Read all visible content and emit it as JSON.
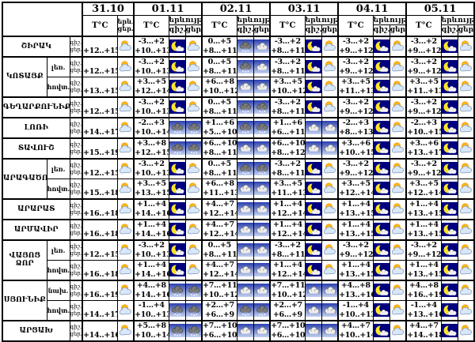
{
  "chart_data": {
    "type": "table",
    "title": "",
    "header": {
      "dates": [
        "31.10",
        "01.11",
        "02.11",
        "03.11",
        "04.11",
        "05.11"
      ],
      "temp_label": "T°C",
      "phenomenon_label": "երևույթ",
      "phen_abbr": "երև.",
      "night_label": "գիշ.",
      "day_label": "ցեր."
    },
    "side_labels": {
      "night": "գիշ.",
      "day": "ցեր."
    },
    "icon_legend": {
      "moon": "moon-cloud-icon",
      "sun": "sun-cloud-icon",
      "cloud": "cloud-icon",
      "rain": "rain-cloud-icon"
    },
    "rows": [
      {
        "region": "ՇԻՐԱԿ",
        "span": 1,
        "sub": null,
        "oct": "+12..+15",
        "days": [
          [
            "-3...+2",
            "+10..+13",
            "moon",
            "sun"
          ],
          [
            "0...+5",
            "+8...+11",
            "rain",
            "cloud"
          ],
          [
            "-3...+2",
            "+8...+11",
            "moon",
            "sun"
          ],
          [
            "-3...+2",
            "+9...+12",
            "moon",
            "sun"
          ],
          [
            "-3...+2",
            "+9...+12",
            "moon",
            "sun"
          ]
        ]
      },
      {
        "region": "ԿՈՏԱՅՔ",
        "span": 2,
        "sub": "լեռ.",
        "oct": "+12..+15",
        "days": [
          [
            "-3...+2",
            "+10..+13",
            "moon",
            "sun"
          ],
          [
            "0...+5",
            "+8...+11",
            "rain",
            "cloud"
          ],
          [
            "-3...+2",
            "+8...+11",
            "moon",
            "sun"
          ],
          [
            "-3...+2",
            "+9...+12",
            "moon",
            "sun"
          ],
          [
            "-3...+2",
            "+9...+12",
            "moon",
            "sun"
          ]
        ]
      },
      {
        "region": null,
        "span": 0,
        "sub": "հովտ.",
        "oct": "+13..+15",
        "days": [
          [
            "+3...+5",
            "+12..+14",
            "moon",
            "sun"
          ],
          [
            "+6...+8",
            "+10..+12",
            "cloud",
            "cloud"
          ],
          [
            "+3...+5",
            "+10..+12",
            "moon",
            "sun"
          ],
          [
            "+3...+5",
            "+11..+13",
            "moon",
            "sun"
          ],
          [
            "+3...+5",
            "+11..+13",
            "moon",
            "sun"
          ]
        ]
      },
      {
        "region": "ԳԵՂԱՐՔՈՒՆԻՔ",
        "span": 1,
        "sub": null,
        "oct": "+12..+15",
        "days": [
          [
            "-3...+2",
            "+10..+13",
            "moon",
            "sun"
          ],
          [
            "0...+5",
            "+8...+11",
            "rain",
            "rain"
          ],
          [
            "-3...+2",
            "+8...+11",
            "moon",
            "sun"
          ],
          [
            "-3...+2",
            "+9...+12",
            "moon",
            "sun"
          ],
          [
            "-3...+2",
            "+9...+12",
            "moon",
            "sun"
          ]
        ]
      },
      {
        "region": "ԼՈՌԻ",
        "span": 1,
        "sub": null,
        "oct": "+14..+17",
        "days": [
          [
            "-2...+3",
            "+10..+14",
            "rain",
            "rain"
          ],
          [
            "+1...+6",
            "+5...+10",
            "rain",
            "rain"
          ],
          [
            "+1...+6",
            "+6...+11",
            "cloud",
            "cloud"
          ],
          [
            "-2...+3",
            "+8...+13",
            "moon",
            "sun"
          ],
          [
            "-2...+3",
            "+10..+15",
            "moon",
            "sun"
          ]
        ]
      },
      {
        "region": "ՏԱՎՈՒՇ",
        "span": 1,
        "sub": null,
        "oct": "+15..+19",
        "days": [
          [
            "+3...+8",
            "+12..+15",
            "rain",
            "rain"
          ],
          [
            "+6...+10",
            "+8...+11",
            "cloud",
            "cloud"
          ],
          [
            "+6...+10",
            "+8...+12",
            "cloud",
            "cloud"
          ],
          [
            "+3...+6",
            "+10..+15",
            "moon",
            "sun"
          ],
          [
            "+3...+6",
            "+13..+17",
            "moon",
            "sun"
          ]
        ]
      },
      {
        "region": "ԱՐԱԳԱԾՈՏՆ",
        "span": 2,
        "sub": "լեռ.",
        "oct": "+12..+15",
        "days": [
          [
            "-3...+2",
            "+10..+13",
            "moon",
            "sun"
          ],
          [
            "0...+5",
            "+8...+11",
            "rain",
            "rain"
          ],
          [
            "-3...+2",
            "+8...+11",
            "moon",
            "sun"
          ],
          [
            "-3...+2",
            "+9...+12",
            "moon",
            "sun"
          ],
          [
            "-3...+2",
            "+9...+12",
            "moon",
            "sun"
          ]
        ]
      },
      {
        "region": null,
        "span": 0,
        "sub": "հովտ.",
        "oct": "+15..+18",
        "days": [
          [
            "+3...+5",
            "+13..+15",
            "moon",
            "sun"
          ],
          [
            "+6...+8",
            "+11..+13",
            "cloud",
            "cloud"
          ],
          [
            "+3...+5",
            "+11..+13",
            "moon",
            "sun"
          ],
          [
            "+3...+5",
            "+12..+14",
            "moon",
            "sun"
          ],
          [
            "+3...+5",
            "+12..+14",
            "moon",
            "sun"
          ]
        ]
      },
      {
        "region": "ԱՐԱՐԱՏ",
        "span": 1,
        "sub": null,
        "oct": "+16..+18",
        "days": [
          [
            "+1...+4",
            "+14..+16",
            "moon",
            "sun"
          ],
          [
            "+4...+7",
            "+12..+14",
            "cloud",
            "cloud"
          ],
          [
            "+1...+4",
            "+12..+14",
            "moon",
            "sun"
          ],
          [
            "+1...+4",
            "+13..+15",
            "moon",
            "sun"
          ],
          [
            "+1...+4",
            "+13..+15",
            "moon",
            "sun"
          ]
        ]
      },
      {
        "region": "ԱՐՄԱՎԻՐ",
        "span": 1,
        "sub": null,
        "oct": "+16..+18",
        "days": [
          [
            "+1...+4",
            "+14..+16",
            "moon",
            "sun"
          ],
          [
            "+4...+7",
            "+12..+14",
            "cloud",
            "cloud"
          ],
          [
            "+1...+4",
            "+12..+14",
            "moon",
            "sun"
          ],
          [
            "+1...+4",
            "+13..+15",
            "moon",
            "sun"
          ],
          [
            "+1...+4",
            "+13..+15",
            "moon",
            "sun"
          ]
        ]
      },
      {
        "region": "ՎԱՅՈՑ ՁՈՐ",
        "span": 2,
        "sub": "լեռ.",
        "oct": "+12..+15",
        "days": [
          [
            "-3...+2",
            "+10..+13",
            "moon",
            "sun"
          ],
          [
            "0...+5",
            "+8...+11",
            "cloud",
            "cloud"
          ],
          [
            "-3...+2",
            "+8...+11",
            "moon",
            "sun"
          ],
          [
            "-3...+2",
            "+9...+12",
            "moon",
            "sun"
          ],
          [
            "-3...+2",
            "+9...+12",
            "moon",
            "sun"
          ]
        ]
      },
      {
        "region": null,
        "span": 0,
        "sub": "հովտ.",
        "oct": "+16..+18",
        "days": [
          [
            "+1...+4",
            "+14..+16",
            "moon",
            "sun"
          ],
          [
            "+4...+7",
            "+12..+14",
            "cloud",
            "cloud"
          ],
          [
            "+1...+4",
            "+12..+14",
            "moon",
            "sun"
          ],
          [
            "+1...+4",
            "+13..+15",
            "moon",
            "sun"
          ],
          [
            "+1...+4",
            "+13..+15",
            "moon",
            "sun"
          ]
        ]
      },
      {
        "region": "ՍՅՈՒՆԻՔ",
        "span": 2,
        "sub": "նախ.",
        "oct": "+16..+19",
        "days": [
          [
            "+4...+8",
            "+14..+16",
            "rain",
            "rain"
          ],
          [
            "+7...+11",
            "+10..+12",
            "cloud",
            "cloud"
          ],
          [
            "+7...+11",
            "+10..+12",
            "cloud",
            "cloud"
          ],
          [
            "+4...+8",
            "+13..+16",
            "moon",
            "sun"
          ],
          [
            "+4...+8",
            "+16..+19",
            "moon",
            "sun"
          ]
        ]
      },
      {
        "region": null,
        "span": 0,
        "sub": "հովտ.",
        "oct": "+14..+17",
        "days": [
          [
            "-1...+4",
            "+10..+13",
            "rain",
            "rain"
          ],
          [
            "+2...+7",
            "+6...+9",
            "rain",
            "rain"
          ],
          [
            "+2...+7",
            "+6...+9",
            "cloud",
            "cloud"
          ],
          [
            "-1...+4",
            "+10..+13",
            "moon",
            "sun"
          ],
          [
            "-1...+4",
            "+13..+16",
            "moon",
            "sun"
          ]
        ]
      },
      {
        "region": "ԱՐՑԱԽ",
        "span": 1,
        "sub": null,
        "oct": "+14..+16",
        "days": [
          [
            "+5...+8",
            "+10..+14",
            "rain",
            "rain"
          ],
          [
            "+7...+10",
            "+6...+10",
            "cloud",
            "cloud"
          ],
          [
            "+7...+10",
            "+6...+10",
            "cloud",
            "cloud"
          ],
          [
            "+4...+7",
            "+10..+14",
            "moon",
            "sun"
          ],
          [
            "+4...+7",
            "+14..+18",
            "moon",
            "sun"
          ]
        ]
      }
    ],
    "colors": {
      "night_icon_bg": "#00007e",
      "moon_yellow": "#ffe428",
      "sun_orange": "#fdb515",
      "border": "#000000",
      "background": "#ffffff"
    }
  }
}
